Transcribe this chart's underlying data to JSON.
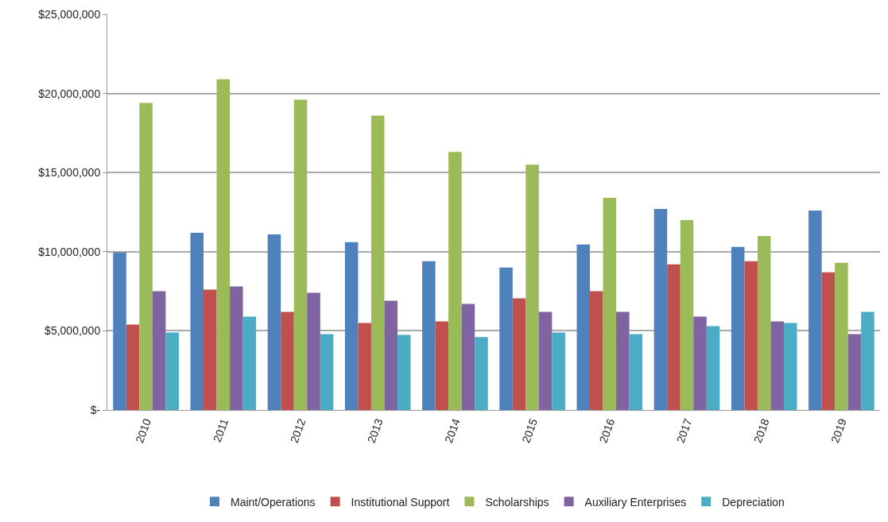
{
  "chart_data": {
    "type": "bar",
    "categories": [
      "2010",
      "2011",
      "2012",
      "2013",
      "2014",
      "2015",
      "2016",
      "2017",
      "2018",
      "2019"
    ],
    "series": [
      {
        "name": "Maint/Operations",
        "color": "#4f81bd",
        "values": [
          9950000,
          11200000,
          11100000,
          10600000,
          9400000,
          9000000,
          10450000,
          12700000,
          10300000,
          12600000
        ]
      },
      {
        "name": "Institutional Support",
        "color": "#c0504d",
        "values": [
          5400000,
          7600000,
          6200000,
          5500000,
          5600000,
          7050000,
          7500000,
          9200000,
          9400000,
          8700000
        ]
      },
      {
        "name": "Scholarships",
        "color": "#9bbb59",
        "values": [
          19400000,
          20900000,
          19600000,
          18600000,
          16300000,
          15500000,
          13400000,
          12000000,
          11000000,
          9300000
        ]
      },
      {
        "name": "Auxiliary Enterprises",
        "color": "#8064a2",
        "values": [
          7500000,
          7800000,
          7400000,
          6900000,
          6700000,
          6200000,
          6200000,
          5900000,
          5600000,
          4800000
        ]
      },
      {
        "name": "Depreciation",
        "color": "#4bacc6",
        "values": [
          4900000,
          5900000,
          4800000,
          4750000,
          4600000,
          4900000,
          4800000,
          5300000,
          5500000,
          6200000
        ]
      }
    ],
    "ylim": [
      0,
      25000000
    ],
    "yticks": [
      {
        "value": 0,
        "label": "$-"
      },
      {
        "value": 5000000,
        "label": "$5,000,000"
      },
      {
        "value": 10000000,
        "label": "$10,000,000"
      },
      {
        "value": 15000000,
        "label": "$15,000,000"
      },
      {
        "value": 20000000,
        "label": "$20,000,000"
      },
      {
        "value": 25000000,
        "label": "$25,000,000"
      }
    ],
    "grid": "y",
    "legend": "bottom"
  }
}
